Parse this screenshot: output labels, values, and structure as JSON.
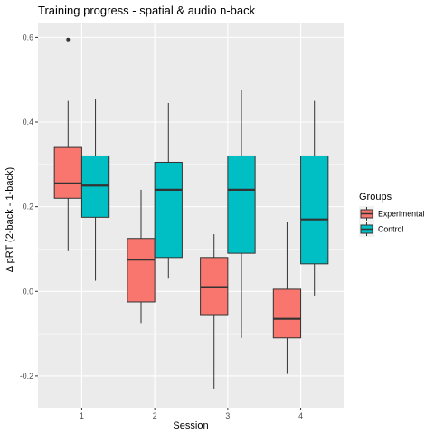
{
  "chart_data": {
    "type": "boxplot",
    "title": "Training progress - spatial & audio n-back",
    "xlabel": "Session",
    "ylabel": "Δ pRT (2-back - 1-back)",
    "categories": [
      "1",
      "2",
      "3",
      "4"
    ],
    "y_ticks": [
      -0.2,
      0.0,
      0.2,
      0.4,
      0.6
    ],
    "y_tick_labels": [
      "-0.2",
      "0.0",
      "0.2",
      "0.4",
      "0.6"
    ],
    "ylim": [
      -0.275,
      0.635
    ],
    "grid": true,
    "legend": {
      "title": "Groups",
      "position": "right"
    },
    "series": [
      {
        "name": "Experimental",
        "color": "#F8766D",
        "boxes": [
          {
            "category": "1",
            "whisker_low": 0.095,
            "q1": 0.22,
            "median": 0.255,
            "q3": 0.34,
            "whisker_high": 0.45,
            "outliers": [
              0.595
            ]
          },
          {
            "category": "2",
            "whisker_low": -0.075,
            "q1": -0.025,
            "median": 0.075,
            "q3": 0.125,
            "whisker_high": 0.24,
            "outliers": []
          },
          {
            "category": "3",
            "whisker_low": -0.23,
            "q1": -0.055,
            "median": 0.01,
            "q3": 0.08,
            "whisker_high": 0.135,
            "outliers": []
          },
          {
            "category": "4",
            "whisker_low": -0.195,
            "q1": -0.11,
            "median": -0.065,
            "q3": 0.005,
            "whisker_high": 0.165,
            "outliers": []
          }
        ]
      },
      {
        "name": "Control",
        "color": "#00BFC4",
        "boxes": [
          {
            "category": "1",
            "whisker_low": 0.025,
            "q1": 0.175,
            "median": 0.25,
            "q3": 0.32,
            "whisker_high": 0.455,
            "outliers": []
          },
          {
            "category": "2",
            "whisker_low": 0.03,
            "q1": 0.08,
            "median": 0.24,
            "q3": 0.305,
            "whisker_high": 0.445,
            "outliers": []
          },
          {
            "category": "3",
            "whisker_low": -0.11,
            "q1": 0.09,
            "median": 0.24,
            "q3": 0.32,
            "whisker_high": 0.475,
            "outliers": []
          },
          {
            "category": "4",
            "whisker_low": -0.01,
            "q1": 0.065,
            "median": 0.17,
            "q3": 0.32,
            "whisker_high": 0.45,
            "outliers": []
          }
        ]
      }
    ]
  }
}
